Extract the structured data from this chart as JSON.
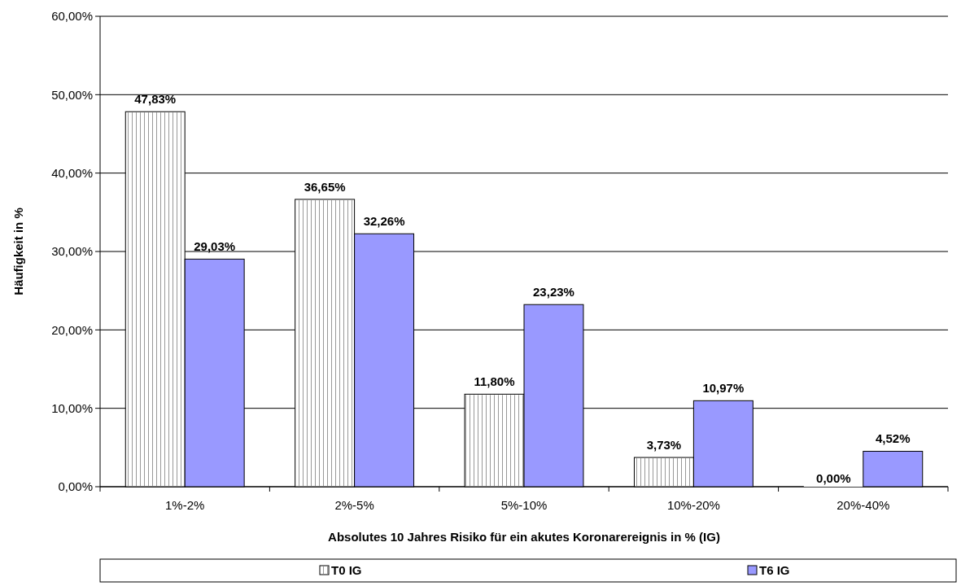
{
  "chart_data": {
    "type": "bar",
    "xlabel": "Absolutes 10 Jahres Risiko für ein akutes Koronarereignis in % (IG)",
    "ylabel": "Häufigkeit in %",
    "categories": [
      "1%-2%",
      "2%-5%",
      "5%-10%",
      "10%-20%",
      "20%-40%"
    ],
    "series": [
      {
        "name": "T0 IG",
        "color": "#ffffff",
        "values": [
          47.83,
          36.65,
          11.8,
          3.73,
          0
        ],
        "value_labels": [
          "47,83%",
          "36,65%",
          "11,80%",
          "3,73%",
          "0,00%"
        ]
      },
      {
        "name": "T6 IG",
        "color": "#9999ff",
        "values": [
          29.03,
          32.26,
          23.23,
          10.97,
          4.52
        ],
        "value_labels": [
          "29,03%",
          "32,26%",
          "23,23%",
          "10,97%",
          "4,52%"
        ]
      }
    ],
    "ylim": [
      0,
      60
    ],
    "yticks": [
      {
        "value": 0,
        "label": "0,00%"
      },
      {
        "value": 10,
        "label": "10,00%"
      },
      {
        "value": 20,
        "label": "20,00%"
      },
      {
        "value": 30,
        "label": "30,00%"
      },
      {
        "value": 40,
        "label": "40,00%"
      },
      {
        "value": 50,
        "label": "50,00%"
      },
      {
        "value": 60,
        "label": "60,00%"
      }
    ],
    "grid": "y",
    "legend": "bottom"
  }
}
